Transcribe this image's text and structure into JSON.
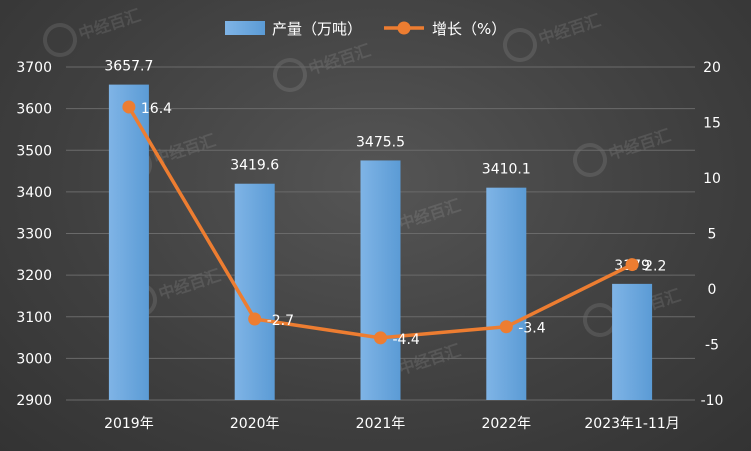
{
  "chart_data": {
    "type": "bar",
    "categories": [
      "2019年",
      "2020年",
      "2021年",
      "2022年",
      "2023年1-11月"
    ],
    "series": [
      {
        "name": "产量（万吨）",
        "kind": "bar",
        "axis": "left",
        "values": [
          3657.7,
          3419.6,
          3475.5,
          3410.1,
          3179
        ],
        "labels": [
          "3657.7",
          "3419.6",
          "3475.5",
          "3410.1",
          "3179"
        ],
        "color": "#5b9bd5"
      },
      {
        "name": "增长（%）",
        "kind": "line",
        "axis": "right",
        "values": [
          16.4,
          -2.7,
          -4.4,
          -3.4,
          2.2
        ],
        "labels": [
          "16.4",
          "-2.7",
          "-4.4",
          "-3.4",
          "2.2"
        ],
        "color": "#ed7d31"
      }
    ],
    "y_left": {
      "min": 2900,
      "max": 3700,
      "ticks": [
        "2900",
        "3000",
        "3100",
        "3200",
        "3300",
        "3400",
        "3500",
        "3600",
        "3700"
      ]
    },
    "y_right": {
      "min": -10,
      "max": 20,
      "ticks": [
        "-10",
        "-5",
        "0",
        "5",
        "10",
        "15",
        "20"
      ]
    },
    "grid": true,
    "legend_position": "top-center"
  },
  "watermark": "中经百汇"
}
